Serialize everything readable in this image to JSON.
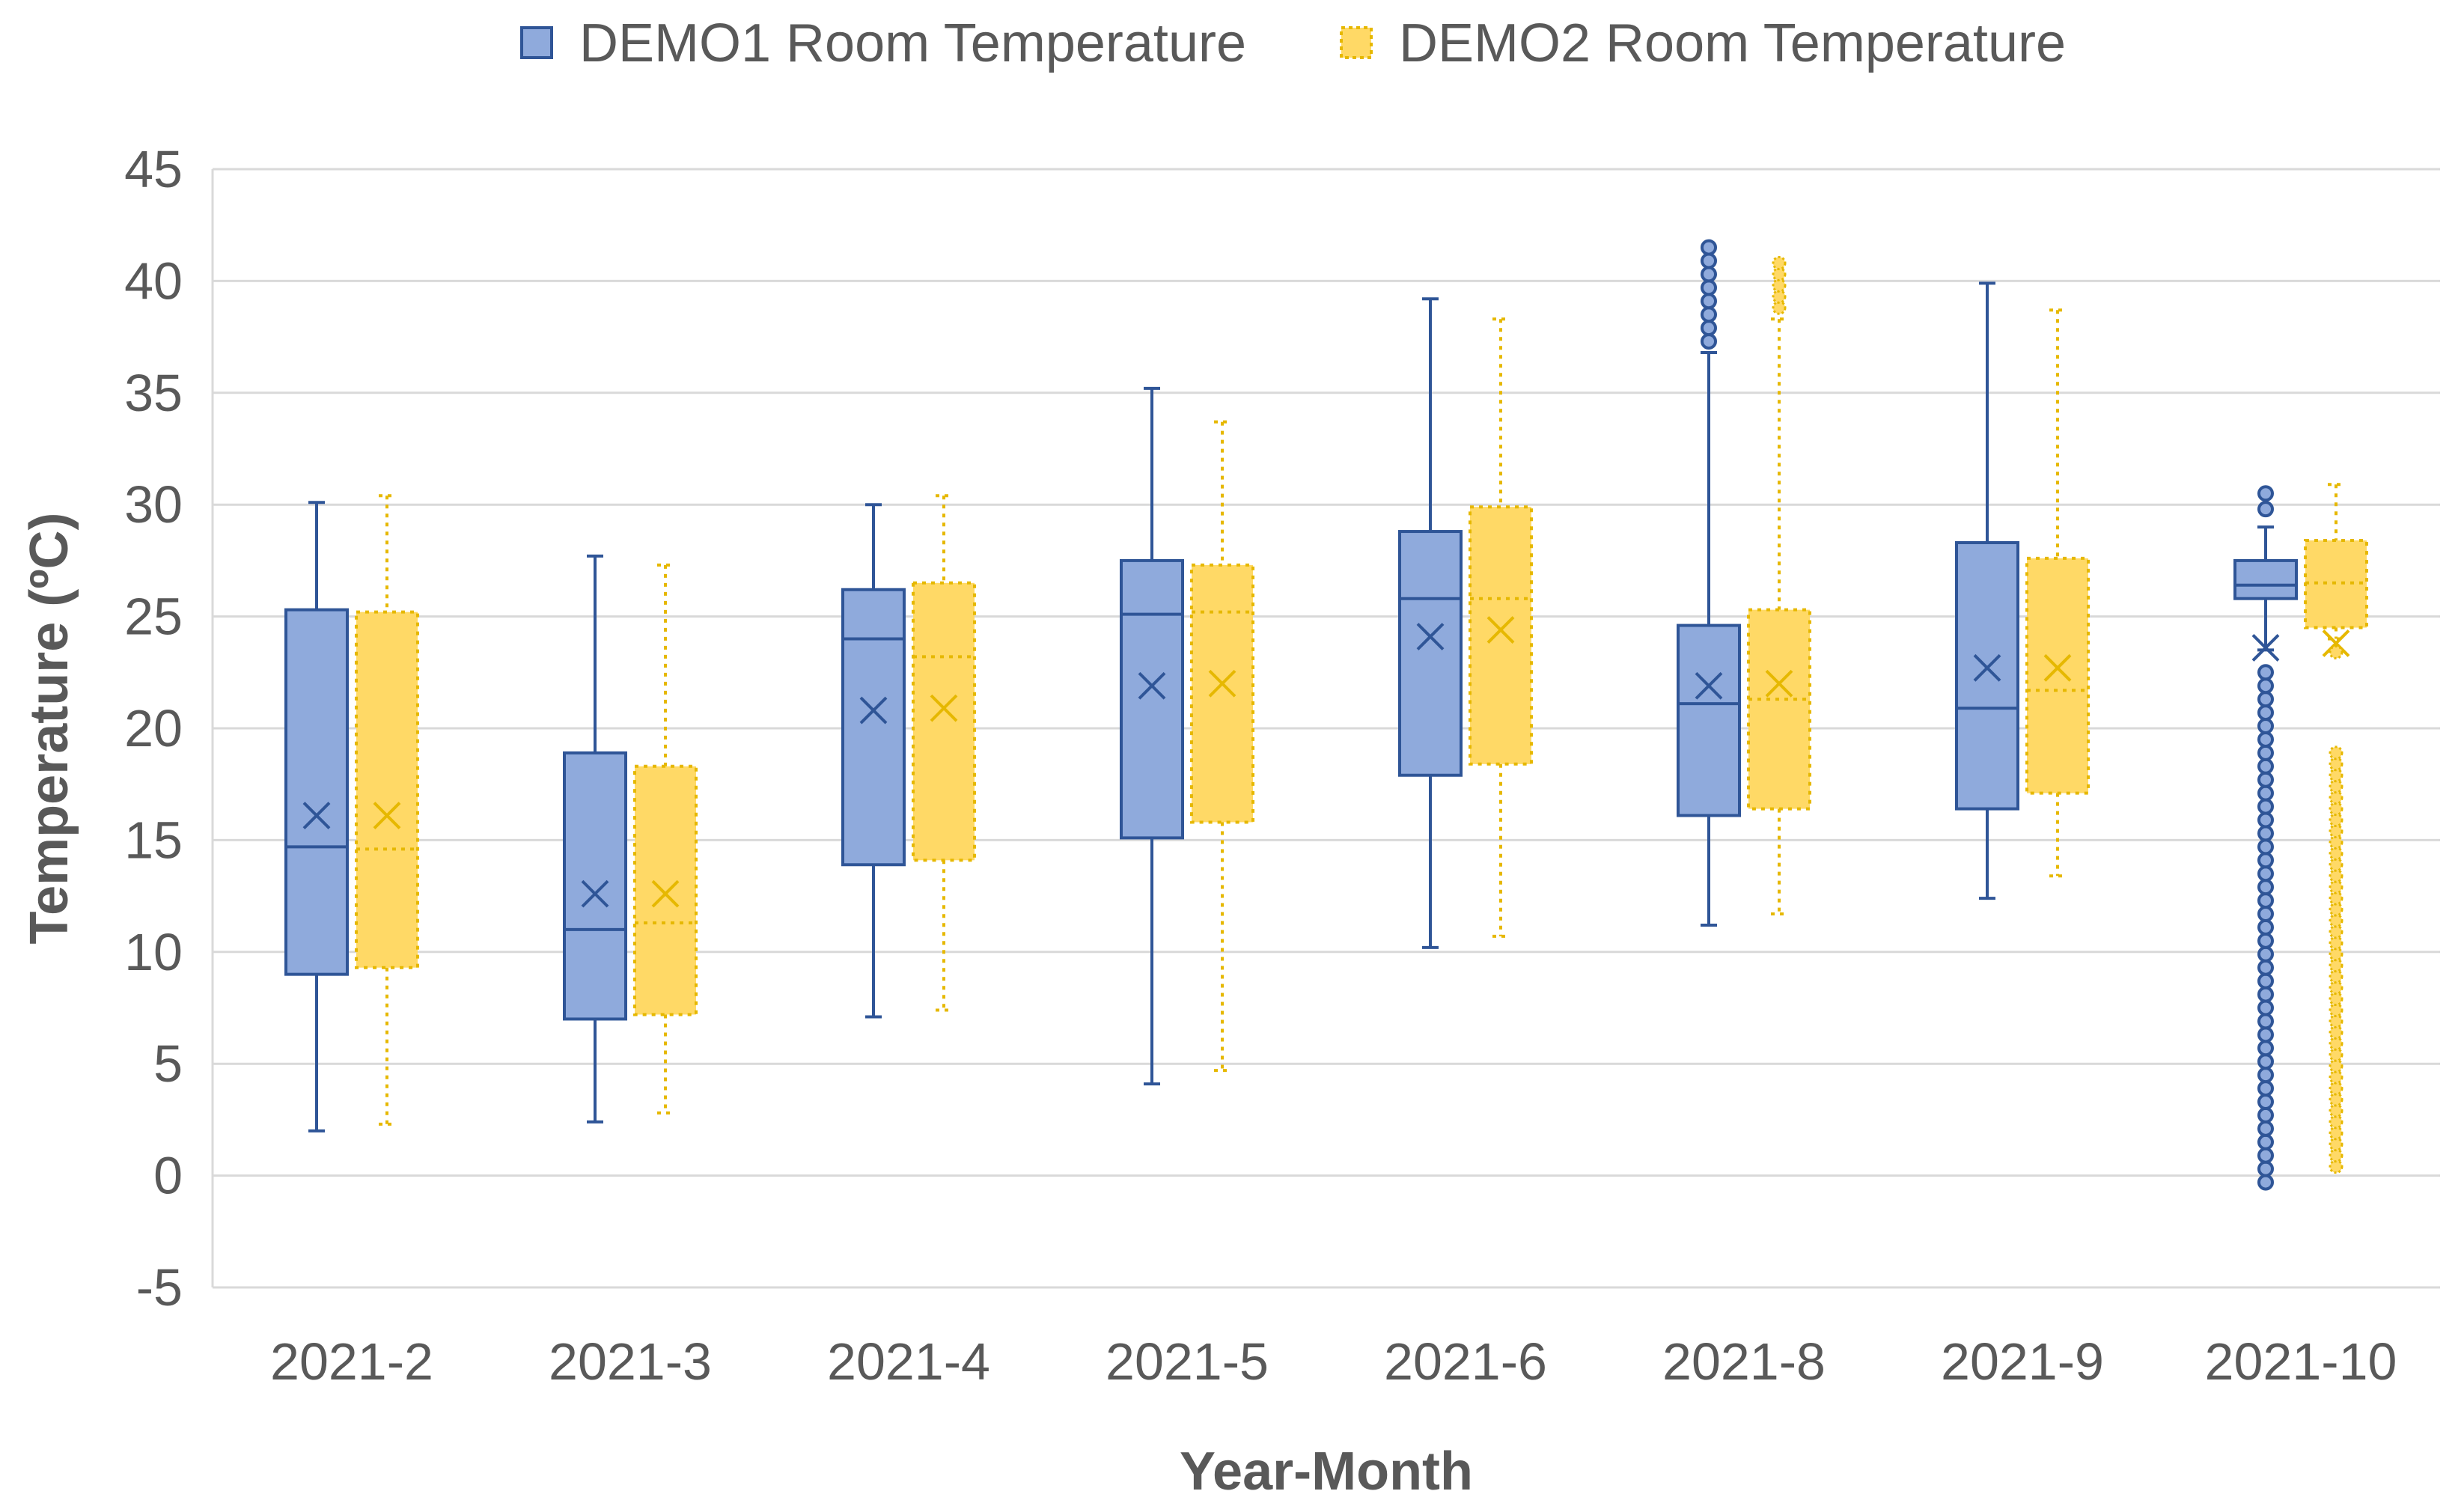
{
  "chart_data": {
    "type": "boxplot",
    "title": "",
    "xlabel": "Year-Month",
    "ylabel": "Temperature (ºC)",
    "ylim": [
      -5,
      45
    ],
    "yticks": [
      -5,
      0,
      5,
      10,
      15,
      20,
      25,
      30,
      35,
      40,
      45
    ],
    "ytick_labels": [
      "-5",
      "0",
      "5",
      "10",
      "15",
      "20",
      "25",
      "30",
      "35",
      "40",
      "45"
    ],
    "grid": true,
    "legend_position": "top",
    "categories": [
      "2021-2",
      "2021-3",
      "2021-4",
      "2021-5",
      "2021-6",
      "2021-8",
      "2021-9",
      "2021-10"
    ],
    "series": [
      {
        "name": "DEMO1 Room Temperature",
        "fill": "#8faadc",
        "stroke": "#2f5597",
        "line_style": "solid",
        "boxes": [
          {
            "min": 2.0,
            "q1": 9.0,
            "median": 14.7,
            "q3": 25.3,
            "max": 30.1,
            "mean": 16.1,
            "outliers": []
          },
          {
            "min": 2.4,
            "q1": 7.0,
            "median": 11.0,
            "q3": 18.9,
            "max": 27.7,
            "mean": 12.6,
            "outliers": []
          },
          {
            "min": 7.1,
            "q1": 13.9,
            "median": 24.0,
            "q3": 26.2,
            "max": 30.0,
            "mean": 20.8,
            "outliers": []
          },
          {
            "min": 4.1,
            "q1": 15.1,
            "median": 25.1,
            "q3": 27.5,
            "max": 35.2,
            "mean": 21.9,
            "outliers": []
          },
          {
            "min": 10.2,
            "q1": 17.9,
            "median": 25.8,
            "q3": 28.8,
            "max": 39.2,
            "mean": 24.1,
            "outliers": []
          },
          {
            "min": 11.2,
            "q1": 16.1,
            "median": 21.1,
            "q3": 24.6,
            "max": 36.8,
            "mean": 21.9,
            "outliers": [
              37.3,
              37.9,
              38.5,
              39.1,
              39.7,
              40.3,
              40.9,
              41.5
            ]
          },
          {
            "min": 12.4,
            "q1": 16.4,
            "median": 20.9,
            "q3": 28.3,
            "max": 39.9,
            "mean": 22.7,
            "outliers": []
          },
          {
            "min": 23.5,
            "q1": 25.8,
            "median": 26.4,
            "q3": 27.5,
            "max": 29.0,
            "mean": 23.6,
            "outliers": [
              -0.3,
              0.3,
              0.9,
              1.5,
              2.1,
              2.7,
              3.3,
              3.9,
              4.5,
              5.1,
              5.7,
              6.3,
              6.9,
              7.5,
              8.1,
              8.7,
              9.3,
              9.9,
              10.5,
              11.1,
              11.7,
              12.3,
              12.9,
              13.5,
              14.1,
              14.7,
              15.3,
              15.9,
              16.5,
              17.1,
              17.7,
              18.3,
              18.9,
              19.5,
              20.1,
              20.7,
              21.3,
              21.9,
              22.5,
              29.8,
              30.5
            ]
          }
        ]
      },
      {
        "name": "DEMO2 Room Temperature",
        "fill": "#ffd966",
        "stroke": "#e6b800",
        "line_style": "dotted",
        "boxes": [
          {
            "min": 2.3,
            "q1": 9.3,
            "median": 14.6,
            "q3": 25.2,
            "max": 30.4,
            "mean": 16.1,
            "outliers": []
          },
          {
            "min": 2.8,
            "q1": 7.2,
            "median": 11.3,
            "q3": 18.3,
            "max": 27.3,
            "mean": 12.6,
            "outliers": []
          },
          {
            "min": 7.4,
            "q1": 14.1,
            "median": 23.2,
            "q3": 26.5,
            "max": 30.4,
            "mean": 20.9,
            "outliers": []
          },
          {
            "min": 4.7,
            "q1": 15.8,
            "median": 25.2,
            "q3": 27.3,
            "max": 33.7,
            "mean": 22.0,
            "outliers": []
          },
          {
            "min": 10.7,
            "q1": 18.4,
            "median": 25.8,
            "q3": 29.9,
            "max": 38.3,
            "mean": 24.4,
            "outliers": []
          },
          {
            "min": 11.7,
            "q1": 16.4,
            "median": 21.3,
            "q3": 25.3,
            "max": 38.3,
            "mean": 22.0,
            "outliers": [
              38.8,
              39.3,
              39.8,
              40.3,
              40.8
            ]
          },
          {
            "min": 13.4,
            "q1": 17.1,
            "median": 21.7,
            "q3": 27.6,
            "max": 38.7,
            "mean": 22.7,
            "outliers": []
          },
          {
            "min": 24.0,
            "q1": 24.5,
            "median": 26.5,
            "q3": 28.4,
            "max": 30.9,
            "mean": 23.8,
            "outliers": [
              0.4,
              0.9,
              1.4,
              1.9,
              2.4,
              2.9,
              3.4,
              3.9,
              4.4,
              4.9,
              5.4,
              5.9,
              6.4,
              6.9,
              7.4,
              7.9,
              8.4,
              8.9,
              9.4,
              9.9,
              10.4,
              10.9,
              11.4,
              11.9,
              12.4,
              12.9,
              13.4,
              13.9,
              14.4,
              14.9,
              15.4,
              15.9,
              16.4,
              16.9,
              17.4,
              17.9,
              18.4,
              18.9,
              23.4
            ]
          }
        ]
      }
    ]
  }
}
